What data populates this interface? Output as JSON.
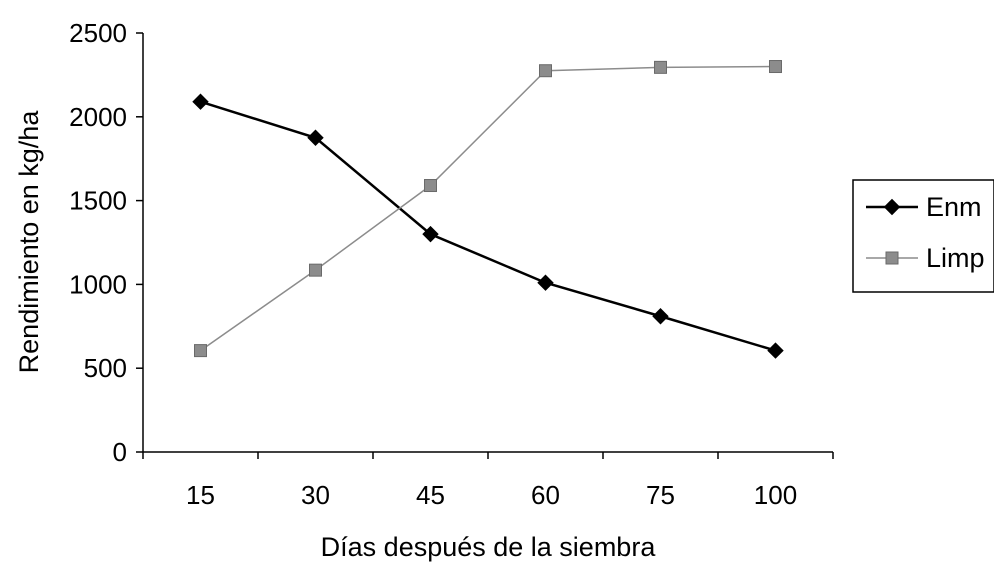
{
  "chart_data": {
    "type": "line",
    "title": "",
    "xlabel": "Días después de la siembra",
    "ylabel": "Rendimiento en kg/ha",
    "categories": [
      "15",
      "30",
      "45",
      "60",
      "75",
      "100"
    ],
    "ylim": [
      0,
      2500
    ],
    "yticks": [
      "0",
      "500",
      "1000",
      "1500",
      "2000",
      "2500"
    ],
    "grid": false,
    "legend_position": "right",
    "series": [
      {
        "name": "Enm",
        "values": [
          2090,
          1875,
          1300,
          1010,
          810,
          605
        ],
        "color": "#000000",
        "marker": "diamond"
      },
      {
        "name": "Limp",
        "values": [
          605,
          1085,
          1590,
          2275,
          2295,
          2300
        ],
        "color": "#8c8c8c",
        "marker": "square"
      }
    ]
  }
}
